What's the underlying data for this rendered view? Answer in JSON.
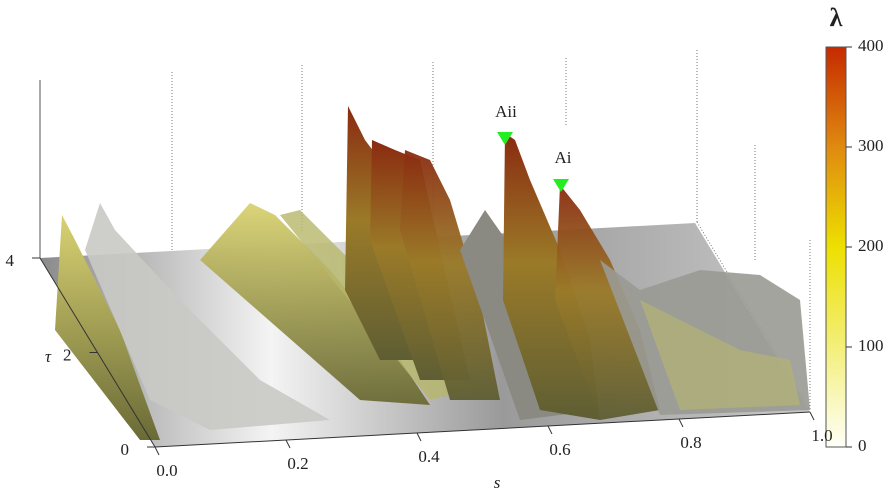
{
  "chart_data": {
    "type": "surface3d",
    "xlabel": "s",
    "ylabel": "τ",
    "colorbar_label": "λ",
    "xlim": [
      0,
      1
    ],
    "xticks": [
      {
        "value": 0,
        "label": "0.0"
      },
      0.2,
      0.4,
      0.6,
      0.8,
      {
        "value": 1,
        "label": "1.0"
      }
    ],
    "ylim": [
      0,
      4
    ],
    "yticks": [
      0,
      2,
      4
    ],
    "clim": [
      0,
      400
    ],
    "cticks": [
      0,
      100,
      200,
      300,
      400
    ],
    "colormap": [
      "#fffff8",
      "#f3ef7a",
      "#ede000",
      "#df8a10",
      "#c62a00"
    ],
    "annotations": [
      "Aii",
      "Ai"
    ],
    "annotation_color": "#22ee22"
  }
}
